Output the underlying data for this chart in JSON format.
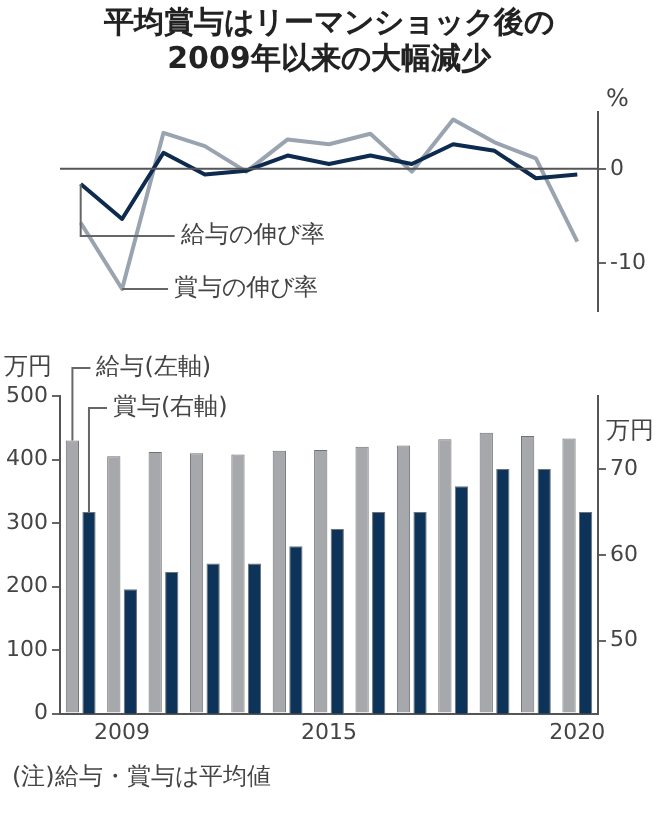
{
  "chart_data": [
    {
      "type": "line",
      "title": "平均賞与はリーマンショック後の\n2009年以来の大幅減少",
      "y2label": "%",
      "categories": [
        null,
        "2009",
        null,
        null,
        null,
        null,
        "2015",
        null,
        null,
        null,
        null,
        null,
        "2020"
      ],
      "y2lim": [
        -15,
        6
      ],
      "y2ticks": [
        -10,
        0
      ],
      "tick_labels": "y",
      "ref_lines": [
        {
          "axis": "y2",
          "value": 0,
          "color": "#555555"
        }
      ],
      "series": [
        {
          "name": "給与の伸び率",
          "color": "#0d2a4f",
          "axis": "y2",
          "values": [
            -1.6,
            -5.3,
            1.7,
            -0.6,
            -0.2,
            1.4,
            0.5,
            1.4,
            0.5,
            2.6,
            1.9,
            -1.0,
            -0.6
          ]
        },
        {
          "name": "賞与の伸び率",
          "color": "#9aa3b0",
          "axis": "y2",
          "values": [
            -5.7,
            -12.7,
            3.8,
            2.4,
            -0.3,
            3.1,
            2.6,
            3.7,
            -0.3,
            5.2,
            2.8,
            1.1,
            -7.7
          ]
        }
      ]
    },
    {
      "type": "bar",
      "ylabel": "万円",
      "y2label": "万円",
      "categories": [
        null,
        "2009",
        null,
        null,
        null,
        null,
        "2015",
        null,
        null,
        null,
        null,
        null,
        "2020"
      ],
      "ylim": [
        0,
        500
      ],
      "yticks": [
        0,
        100,
        200,
        300,
        400,
        500
      ],
      "y2lim": [
        41.5,
        78.5
      ],
      "y2ticks": [
        50,
        60,
        70
      ],
      "annotations": [
        "(注)給与・賞与は平均値"
      ],
      "series": [
        {
          "name": "給与(左軸)",
          "color": "#a6a8ab",
          "values": [
            430,
            405,
            412,
            410,
            408,
            414,
            415,
            420,
            422,
            432,
            442,
            437,
            433
          ]
        },
        {
          "name": "賞与(右軸)",
          "color": "#0d3358",
          "axis": "y2",
          "values": [
            65,
            56,
            58,
            59,
            59,
            61,
            63,
            65,
            65,
            68,
            70,
            70,
            65
          ]
        }
      ]
    }
  ]
}
